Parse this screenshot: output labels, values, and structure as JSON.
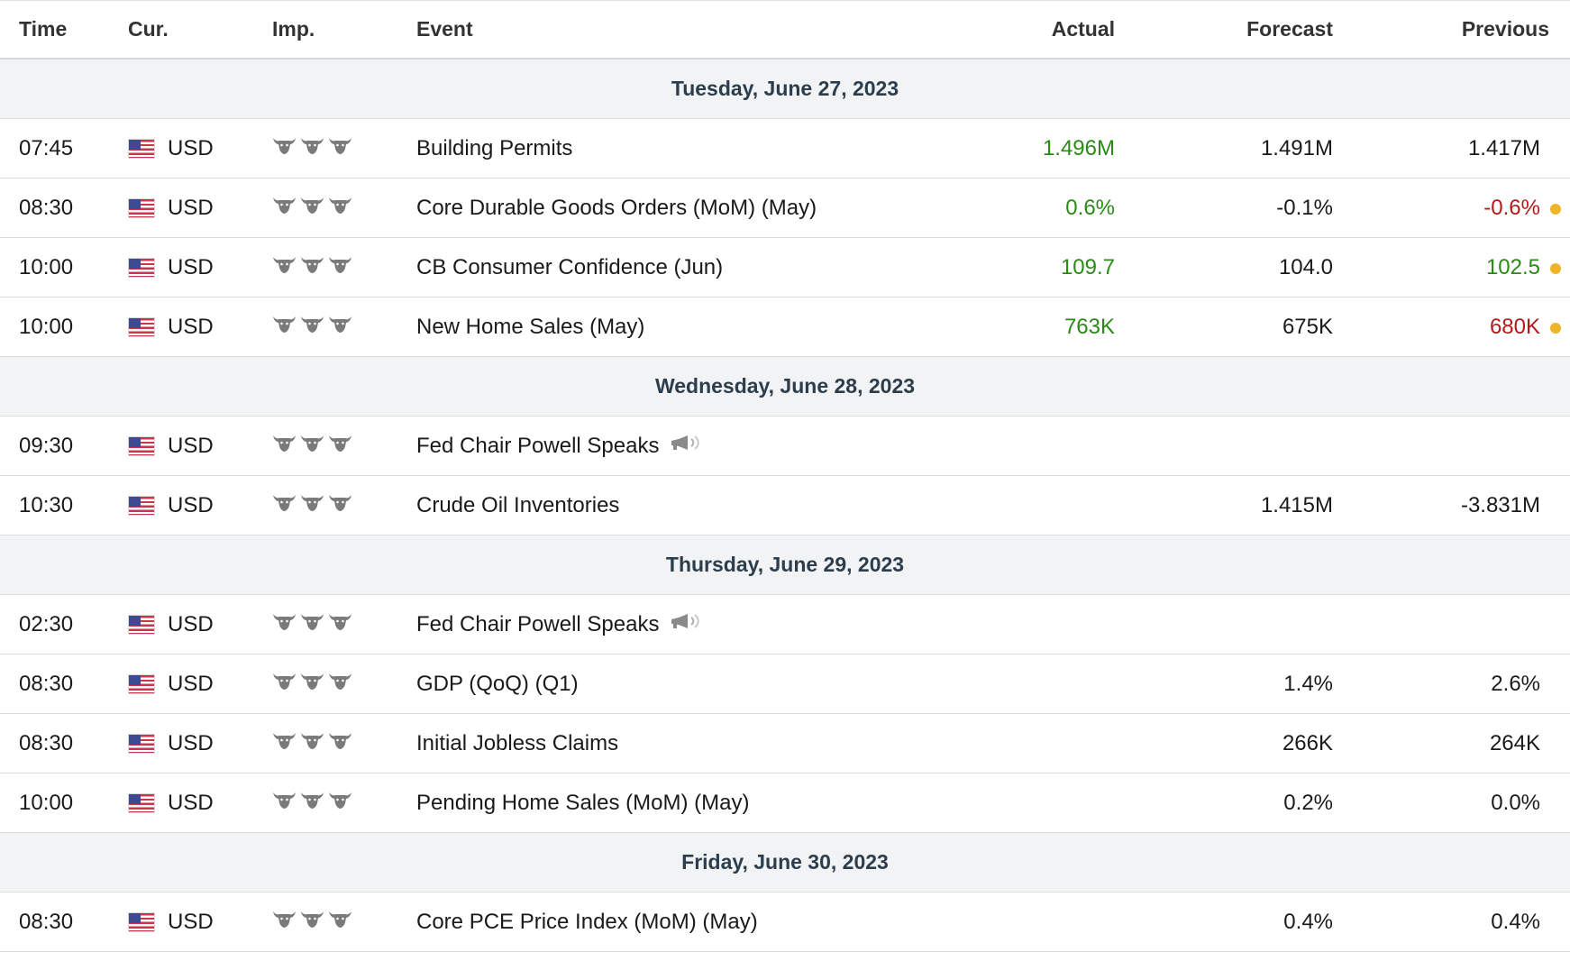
{
  "header": {
    "time": "Time",
    "currency": "Cur.",
    "importance": "Imp.",
    "event": "Event",
    "actual": "Actual",
    "forecast": "Forecast",
    "previous": "Previous"
  },
  "colors": {
    "better_than_expected": "#2a8a16",
    "worse_than_expected": "#b31b1b",
    "revised_dot": "#f0b429",
    "day_row_bg": "#f2f3f4"
  },
  "icons": {
    "flag": "us-flag-icon",
    "importance": "bull-icon",
    "speech": "speaker-icon"
  },
  "days": [
    {
      "label": "Tuesday, June 27, 2023",
      "events": [
        {
          "time": "07:45",
          "currency": "USD",
          "importance": 3,
          "event": "Building Permits",
          "speech": false,
          "actual": "1.496M",
          "actual_color": "green",
          "forecast": "1.491M",
          "previous": "1.417M",
          "previous_color": "",
          "revised": false
        },
        {
          "time": "08:30",
          "currency": "USD",
          "importance": 3,
          "event": "Core Durable Goods Orders (MoM) (May)",
          "speech": false,
          "actual": "0.6%",
          "actual_color": "green",
          "forecast": "-0.1%",
          "previous": "-0.6%",
          "previous_color": "red",
          "revised": true
        },
        {
          "time": "10:00",
          "currency": "USD",
          "importance": 3,
          "event": "CB Consumer Confidence (Jun)",
          "speech": false,
          "actual": "109.7",
          "actual_color": "green",
          "forecast": "104.0",
          "previous": "102.5",
          "previous_color": "green",
          "revised": true
        },
        {
          "time": "10:00",
          "currency": "USD",
          "importance": 3,
          "event": "New Home Sales (May)",
          "speech": false,
          "actual": "763K",
          "actual_color": "green",
          "forecast": "675K",
          "previous": "680K",
          "previous_color": "red",
          "revised": true
        }
      ]
    },
    {
      "label": "Wednesday, June 28, 2023",
      "events": [
        {
          "time": "09:30",
          "currency": "USD",
          "importance": 3,
          "event": "Fed Chair Powell Speaks",
          "speech": true,
          "actual": "",
          "actual_color": "",
          "forecast": "",
          "previous": "",
          "previous_color": "",
          "revised": false
        },
        {
          "time": "10:30",
          "currency": "USD",
          "importance": 3,
          "event": "Crude Oil Inventories",
          "speech": false,
          "actual": "",
          "actual_color": "",
          "forecast": "1.415M",
          "previous": "-3.831M",
          "previous_color": "",
          "revised": false
        }
      ]
    },
    {
      "label": "Thursday, June 29, 2023",
      "events": [
        {
          "time": "02:30",
          "currency": "USD",
          "importance": 3,
          "event": "Fed Chair Powell Speaks",
          "speech": true,
          "actual": "",
          "actual_color": "",
          "forecast": "",
          "previous": "",
          "previous_color": "",
          "revised": false
        },
        {
          "time": "08:30",
          "currency": "USD",
          "importance": 3,
          "event": "GDP (QoQ) (Q1)",
          "speech": false,
          "actual": "",
          "actual_color": "",
          "forecast": "1.4%",
          "previous": "2.6%",
          "previous_color": "",
          "revised": false
        },
        {
          "time": "08:30",
          "currency": "USD",
          "importance": 3,
          "event": "Initial Jobless Claims",
          "speech": false,
          "actual": "",
          "actual_color": "",
          "forecast": "266K",
          "previous": "264K",
          "previous_color": "",
          "revised": false
        },
        {
          "time": "10:00",
          "currency": "USD",
          "importance": 3,
          "event": "Pending Home Sales (MoM) (May)",
          "speech": false,
          "actual": "",
          "actual_color": "",
          "forecast": "0.2%",
          "previous": "0.0%",
          "previous_color": "",
          "revised": false
        }
      ]
    },
    {
      "label": "Friday, June 30, 2023",
      "events": [
        {
          "time": "08:30",
          "currency": "USD",
          "importance": 3,
          "event": "Core PCE Price Index (MoM) (May)",
          "speech": false,
          "actual": "",
          "actual_color": "",
          "forecast": "0.4%",
          "previous": "0.4%",
          "previous_color": "",
          "revised": false
        }
      ]
    }
  ]
}
